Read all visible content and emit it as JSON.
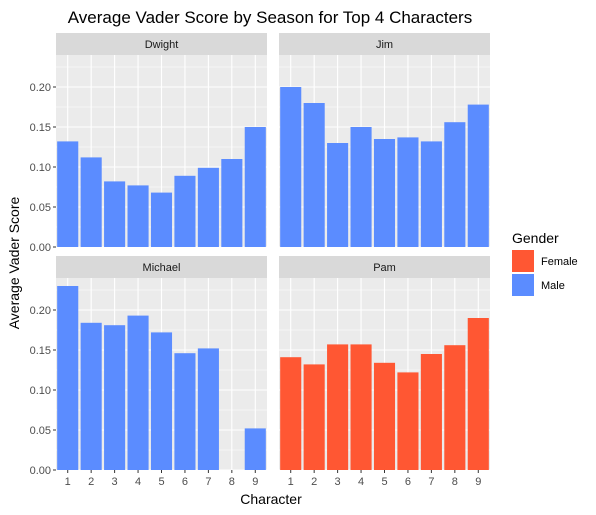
{
  "chart_data": {
    "type": "bar",
    "title": "Average Vader Score by Season for Top 4 Characters",
    "xlabel": "Character",
    "ylabel": "Average Vader Score",
    "categories": [
      "1",
      "2",
      "3",
      "4",
      "5",
      "6",
      "7",
      "8",
      "9"
    ],
    "ylim": [
      0,
      0.24
    ],
    "yticks": [
      "0.00",
      "0.05",
      "0.10",
      "0.15",
      "0.20"
    ],
    "grid": true,
    "legend_position": "right",
    "legend": {
      "title": "Gender",
      "entries": [
        {
          "label": "Female",
          "color": "#FF5733"
        },
        {
          "label": "Male",
          "color": "#5B8CFF"
        }
      ]
    },
    "panels": [
      {
        "name": "Dwight",
        "gender": "Male",
        "values": [
          0.132,
          0.112,
          0.082,
          0.077,
          0.068,
          0.089,
          0.099,
          0.11,
          0.15
        ]
      },
      {
        "name": "Jim",
        "gender": "Male",
        "values": [
          0.2,
          0.18,
          0.13,
          0.15,
          0.135,
          0.137,
          0.132,
          0.156,
          0.178
        ]
      },
      {
        "name": "Michael",
        "gender": "Male",
        "values": [
          0.23,
          0.184,
          0.181,
          0.193,
          0.172,
          0.146,
          0.152,
          null,
          0.052
        ]
      },
      {
        "name": "Pam",
        "gender": "Female",
        "values": [
          0.141,
          0.132,
          0.157,
          0.157,
          0.134,
          0.122,
          0.145,
          0.156,
          0.19
        ]
      }
    ]
  },
  "colors": {
    "panel_background": "#EBEBEB",
    "strip_background": "#D9D9D9",
    "grid": "#FFFFFF",
    "male": "#5B8CFF",
    "female": "#FF5733"
  }
}
